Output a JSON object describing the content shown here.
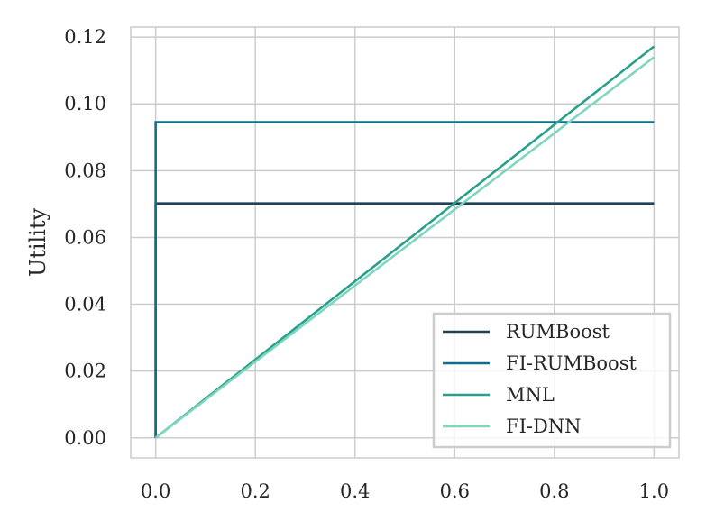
{
  "chart_data": {
    "type": "line",
    "title": "",
    "xlabel": "",
    "ylabel": "Utility",
    "xlim": [
      -0.05,
      1.05
    ],
    "ylim": [
      -0.006,
      0.123
    ],
    "xticks": [
      "0.0",
      "0.2",
      "0.4",
      "0.6",
      "0.8",
      "1.0"
    ],
    "xtick_values": [
      0.0,
      0.2,
      0.4,
      0.6,
      0.8,
      1.0
    ],
    "yticks": [
      "0.00",
      "0.02",
      "0.04",
      "0.06",
      "0.08",
      "0.10",
      "0.12"
    ],
    "ytick_values": [
      0.0,
      0.02,
      0.04,
      0.06,
      0.08,
      0.1,
      0.12
    ],
    "grid": true,
    "legend_position": "lower-right",
    "series": [
      {
        "name": "RUMBoost",
        "color": "#1f4257",
        "x": [
          0.0,
          0.0,
          1.0
        ],
        "y": [
          0.0,
          0.0702,
          0.0702
        ]
      },
      {
        "name": "FI-RUMBoost",
        "color": "#116e8a",
        "x": [
          0.0,
          0.0,
          1.0
        ],
        "y": [
          0.0,
          0.0945,
          0.0945
        ]
      },
      {
        "name": "MNL",
        "color": "#28a08a",
        "x": [
          0.0,
          1.0
        ],
        "y": [
          0.0,
          0.1172
        ]
      },
      {
        "name": "FI-DNN",
        "color": "#7fd6bf",
        "x": [
          0.0,
          1.0
        ],
        "y": [
          0.0,
          0.114
        ]
      }
    ]
  }
}
